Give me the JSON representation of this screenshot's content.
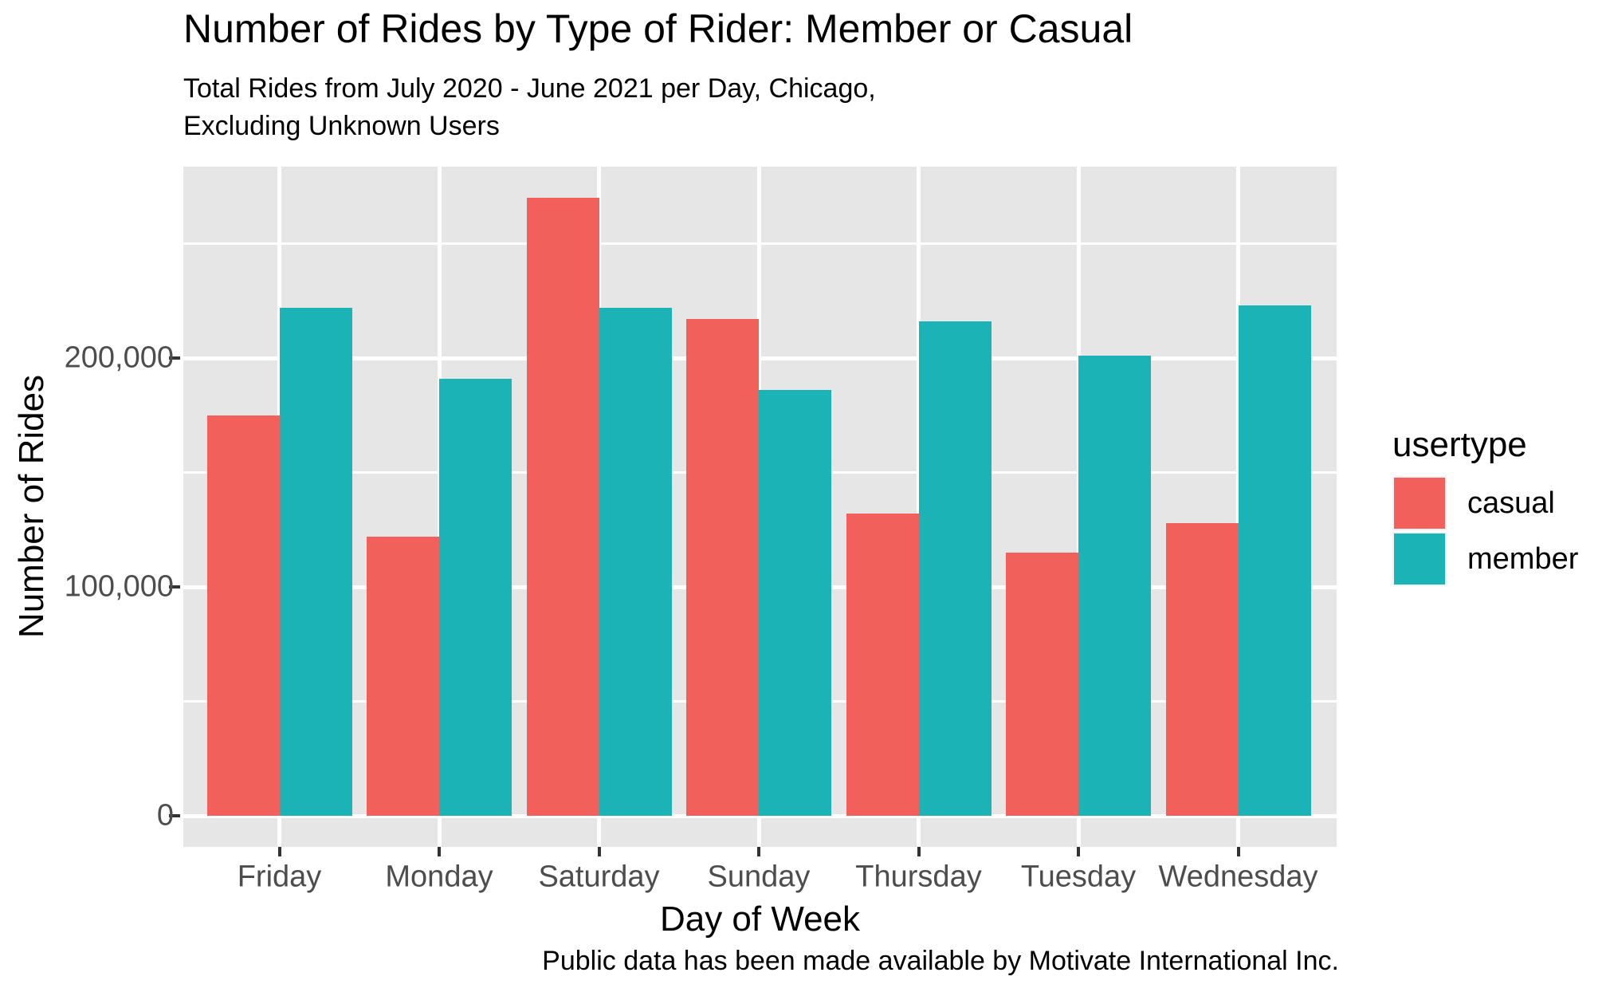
{
  "title": "Number of Rides by Type of Rider: Member or Casual",
  "subtitle": {
    "line1": "Total Rides from July 2020 - June 2021 per Day, Chicago,",
    "line2": "Excluding Unknown Users"
  },
  "caption": "Public data has been made available by Motivate International Inc.",
  "axes": {
    "x_title": "Day of Week",
    "y_title": "Number of Rides",
    "y_tick_labels": [
      "0",
      "100,000",
      "200,000"
    ]
  },
  "legend": {
    "title": "usertype",
    "items": [
      {
        "label": "casual",
        "color": "#F2605C"
      },
      {
        "label": "member",
        "color": "#1BB3B5"
      }
    ]
  },
  "colors": {
    "panel_bg": "#E6E6E6",
    "gridline": "#FFFFFF",
    "tick_label": "#4D4D4D",
    "tick_mark": "#333333",
    "casual": "#F2605C",
    "member": "#1BB3B5"
  },
  "chart_data": {
    "type": "bar",
    "title": "Number of Rides by Type of Rider: Member or Casual",
    "subtitle": "Total Rides from July 2020 - June 2021 per Day, Chicago, Excluding Unknown Users",
    "caption": "Public data has been made available by Motivate International Inc.",
    "xlabel": "Day of Week",
    "ylabel": "Number of Rides",
    "categories": [
      "Friday",
      "Monday",
      "Saturday",
      "Sunday",
      "Thursday",
      "Tuesday",
      "Wednesday"
    ],
    "series": [
      {
        "name": "casual",
        "color": "#F2605C",
        "values": [
          175000,
          122000,
          270000,
          217000,
          132000,
          115000,
          128000
        ]
      },
      {
        "name": "member",
        "color": "#1BB3B5",
        "values": [
          222000,
          191000,
          222000,
          186000,
          216000,
          201000,
          223000
        ]
      }
    ],
    "ylim": [
      0,
      283000
    ],
    "yticks": [
      0,
      100000,
      200000
    ],
    "ytick_labels": [
      "0",
      "100,000",
      "200,000"
    ],
    "minor_gridlines": [
      50000,
      150000,
      250000
    ],
    "grid": "on",
    "legend_title": "usertype",
    "legend_position": "right",
    "legend_entries": [
      "casual",
      "member"
    ]
  }
}
